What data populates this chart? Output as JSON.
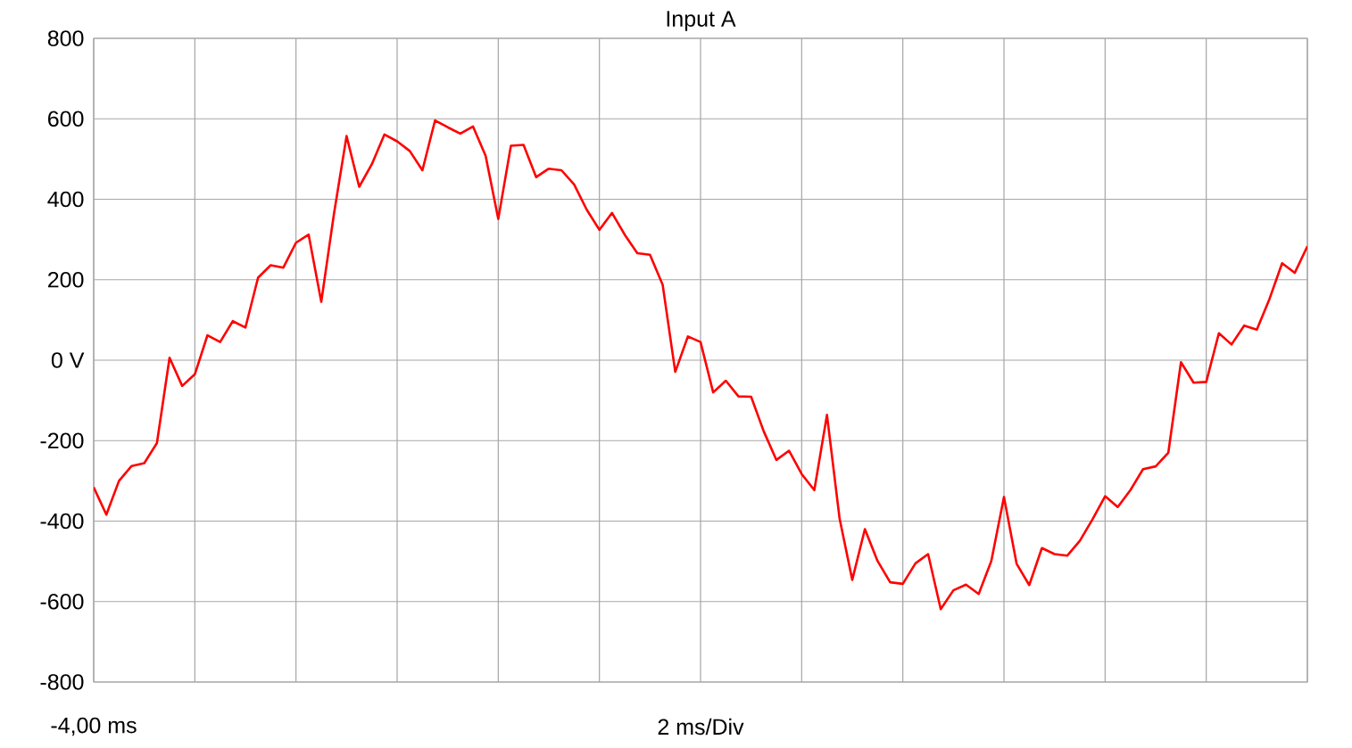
{
  "chart_data": {
    "type": "line",
    "title": "Input A",
    "xlabel": "2 ms/Div",
    "categories": [
      null,
      null,
      null,
      null,
      null,
      null,
      null,
      null,
      null,
      null,
      null,
      null,
      null,
      null,
      null,
      null,
      null,
      null,
      null,
      null,
      null,
      null,
      null,
      null,
      null,
      null,
      null,
      null,
      null,
      null,
      null,
      null,
      null,
      null,
      null,
      null,
      null,
      null,
      null,
      null,
      null,
      null,
      null,
      null,
      null,
      null,
      null,
      null,
      null,
      null,
      null,
      null,
      null,
      null,
      null,
      null,
      null,
      null,
      null,
      null,
      null,
      null,
      null,
      null,
      null,
      null,
      null,
      null,
      null,
      null,
      null,
      null,
      null,
      null,
      null,
      null,
      null,
      null,
      null,
      null,
      null,
      null,
      null,
      null,
      null,
      null,
      null,
      null,
      null,
      null,
      null,
      null,
      null,
      null,
      null,
      null,
      null
    ],
    "series": [
      {
        "color": "#ff0000",
        "values": [
          -316,
          -384,
          -300,
          -263,
          -256,
          -206,
          6,
          -64,
          -35,
          62,
          45,
          97,
          81,
          205,
          236,
          230,
          292,
          312,
          145,
          363,
          557,
          431,
          487,
          561,
          544,
          520,
          472,
          596,
          579,
          563,
          581,
          508,
          351,
          533,
          535,
          455,
          476,
          472,
          437,
          374,
          324,
          366,
          312,
          266,
          262,
          188,
          -29,
          59,
          45,
          -80,
          -51,
          -90,
          -91,
          -177,
          -248,
          -225,
          -283,
          -323,
          -136,
          -394,
          -546,
          -420,
          -499,
          -552,
          -556,
          -505,
          -482,
          -619,
          -572,
          -558,
          -581,
          -499,
          -340,
          -506,
          -559,
          -467,
          -482,
          -486,
          -449,
          -396,
          -338,
          -365,
          -323,
          -271,
          -264,
          -230,
          -5,
          -56,
          -54,
          67,
          39,
          86,
          76,
          152,
          241,
          217,
          283
        ]
      }
    ],
    "annotations": [
      "-4,00 ms"
    ],
    "ylim": [
      -800,
      800
    ],
    "yticks": [
      {
        "value": -800,
        "label": "-800"
      },
      {
        "value": -600,
        "label": "-600"
      },
      {
        "value": -400,
        "label": "-400"
      },
      {
        "value": -200,
        "label": "-200"
      },
      {
        "value": 0,
        "label": "0 V"
      },
      {
        "value": 200,
        "label": "200"
      },
      {
        "value": 400,
        "label": "400"
      },
      {
        "value": 600,
        "label": "600"
      },
      {
        "value": 800,
        "label": "800"
      }
    ],
    "grid": true
  }
}
